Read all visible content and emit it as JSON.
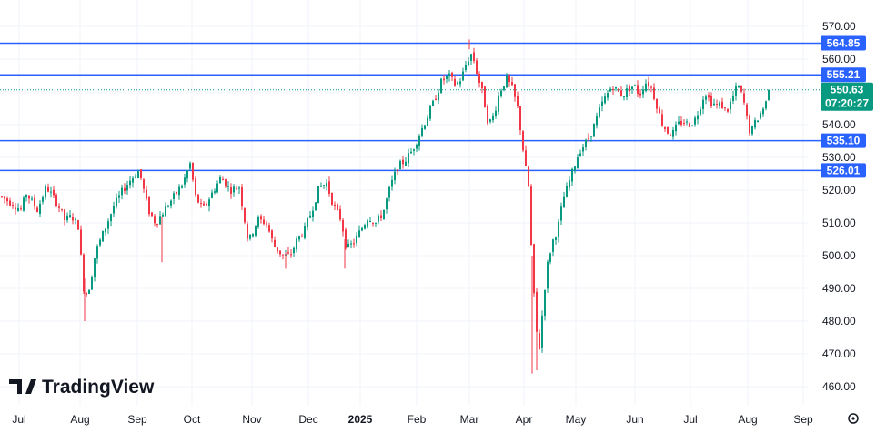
{
  "chart_data": {
    "type": "candlestick",
    "ylim": [
      455,
      575
    ],
    "y_ticks": [
      460,
      470,
      480,
      490,
      500,
      510,
      520,
      530,
      540,
      550,
      560,
      570
    ],
    "y_tick_labels": [
      "460.00",
      "470.00",
      "480.00",
      "490.00",
      "500.00",
      "510.00",
      "520.00",
      "530.00",
      "540.00",
      "550.00",
      "560.00",
      "570.00"
    ],
    "x_labels": [
      {
        "label": "Jul",
        "bold": false
      },
      {
        "label": "Aug",
        "bold": false
      },
      {
        "label": "Sep",
        "bold": false
      },
      {
        "label": "Oct",
        "bold": false
      },
      {
        "label": "Nov",
        "bold": false
      },
      {
        "label": "Dec",
        "bold": false
      },
      {
        "label": "2025",
        "bold": true
      },
      {
        "label": "Feb",
        "bold": false
      },
      {
        "label": "Mar",
        "bold": false
      },
      {
        "label": "Apr",
        "bold": false
      },
      {
        "label": "May",
        "bold": false
      },
      {
        "label": "Jun",
        "bold": false
      },
      {
        "label": "Jul",
        "bold": false
      },
      {
        "label": "Aug",
        "bold": false
      },
      {
        "label": "Sep",
        "bold": false
      }
    ],
    "levels": [
      {
        "value": 564.85,
        "label": "564.85"
      },
      {
        "value": 555.21,
        "label": "555.21"
      },
      {
        "value": 535.1,
        "label": "535.10"
      },
      {
        "value": 526.01,
        "label": "526.01"
      }
    ],
    "last_price": {
      "value": 550.63,
      "label": "550.63",
      "countdown": "07:20:27"
    },
    "colors": {
      "up": "#089981",
      "down": "#f23645",
      "level": "#2962ff",
      "price": "#089981",
      "grid": "#f0f3fa",
      "text": "#131722"
    },
    "series_anchors": [
      [
        0,
        518
      ],
      [
        12,
        516
      ],
      [
        22,
        514
      ],
      [
        28,
        519
      ],
      [
        40,
        514
      ],
      [
        50,
        521
      ],
      [
        62,
        516
      ],
      [
        70,
        511
      ],
      [
        78,
        512
      ],
      [
        85,
        509
      ],
      [
        92,
        487
      ],
      [
        98,
        491
      ],
      [
        104,
        501
      ],
      [
        114,
        508
      ],
      [
        124,
        515
      ],
      [
        134,
        520
      ],
      [
        142,
        523
      ],
      [
        152,
        526
      ],
      [
        162,
        514
      ],
      [
        170,
        510
      ],
      [
        180,
        514
      ],
      [
        190,
        518
      ],
      [
        200,
        522
      ],
      [
        208,
        528
      ],
      [
        214,
        518
      ],
      [
        222,
        514
      ],
      [
        232,
        519
      ],
      [
        242,
        524
      ],
      [
        252,
        520
      ],
      [
        262,
        521
      ],
      [
        272,
        504
      ],
      [
        282,
        511
      ],
      [
        292,
        510
      ],
      [
        300,
        503
      ],
      [
        310,
        500
      ],
      [
        318,
        500
      ],
      [
        326,
        505
      ],
      [
        334,
        508
      ],
      [
        342,
        514
      ],
      [
        350,
        521
      ],
      [
        358,
        522
      ],
      [
        366,
        515
      ],
      [
        374,
        511
      ],
      [
        380,
        502
      ],
      [
        388,
        504
      ],
      [
        396,
        508
      ],
      [
        404,
        512
      ],
      [
        412,
        510
      ],
      [
        420,
        513
      ],
      [
        428,
        521
      ],
      [
        436,
        527
      ],
      [
        444,
        529
      ],
      [
        452,
        532
      ],
      [
        460,
        537
      ],
      [
        468,
        542
      ],
      [
        476,
        547
      ],
      [
        484,
        553
      ],
      [
        492,
        555
      ],
      [
        500,
        552
      ],
      [
        506,
        554
      ],
      [
        512,
        559
      ],
      [
        518,
        562
      ],
      [
        524,
        555
      ],
      [
        530,
        549
      ],
      [
        536,
        540
      ],
      [
        542,
        543
      ],
      [
        548,
        550
      ],
      [
        556,
        554
      ],
      [
        562,
        551
      ],
      [
        568,
        545
      ],
      [
        572,
        537
      ],
      [
        576,
        528
      ],
      [
        580,
        521
      ],
      [
        584,
        497
      ],
      [
        588,
        478
      ],
      [
        592,
        472
      ],
      [
        596,
        485
      ],
      [
        600,
        496
      ],
      [
        606,
        504
      ],
      [
        612,
        508
      ],
      [
        618,
        517
      ],
      [
        624,
        522
      ],
      [
        630,
        527
      ],
      [
        636,
        532
      ],
      [
        642,
        534
      ],
      [
        648,
        537
      ],
      [
        654,
        541
      ],
      [
        660,
        546
      ],
      [
        666,
        549
      ],
      [
        672,
        552
      ],
      [
        678,
        550
      ],
      [
        684,
        549
      ],
      [
        690,
        551
      ],
      [
        696,
        552
      ],
      [
        702,
        549
      ],
      [
        708,
        553
      ],
      [
        714,
        552
      ],
      [
        720,
        547
      ],
      [
        726,
        541
      ],
      [
        732,
        538
      ],
      [
        738,
        537
      ],
      [
        744,
        540
      ],
      [
        750,
        541
      ],
      [
        756,
        540
      ],
      [
        762,
        541
      ],
      [
        768,
        545
      ],
      [
        774,
        550
      ],
      [
        780,
        547
      ],
      [
        786,
        546
      ],
      [
        792,
        546
      ],
      [
        798,
        544
      ],
      [
        804,
        548
      ],
      [
        810,
        552
      ],
      [
        816,
        548
      ],
      [
        820,
        542
      ],
      [
        824,
        537
      ],
      [
        828,
        540
      ],
      [
        834,
        543
      ],
      [
        840,
        546
      ],
      [
        846,
        550.63
      ]
    ]
  },
  "logo": {
    "name": "TradingView"
  }
}
